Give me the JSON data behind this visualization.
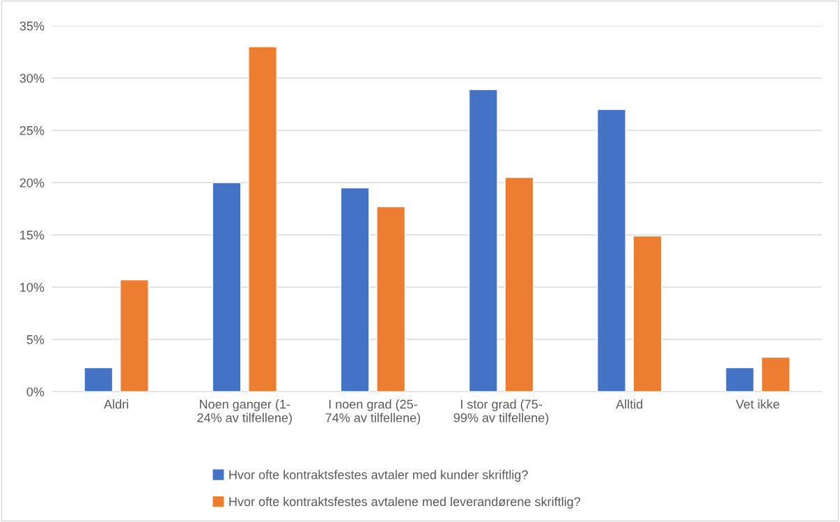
{
  "chart_data": {
    "type": "bar",
    "categories": [
      "Aldri",
      "Noen ganger (1-\n24% av tilfellene)",
      "I noen grad (25-\n74% av tilfellene)",
      "I stor grad (75-\n99% av tilfellene)",
      "Alltid",
      "Vet ikke"
    ],
    "series": [
      {
        "name": "Hvor ofte kontraktsfestes avtaler med kunder skriftlig?",
        "color": "#4472c4",
        "values": [
          2.3,
          20.0,
          19.5,
          28.9,
          27.0,
          2.3
        ]
      },
      {
        "name": "Hvor ofte kontraktsfestes avtalene med leverandørene skriftlig?",
        "color": "#ed7d31",
        "values": [
          10.7,
          33.0,
          17.7,
          20.5,
          14.9,
          3.3
        ]
      }
    ],
    "ylim": [
      0,
      35
    ],
    "yticks": [
      {
        "value": 0,
        "label": "0%"
      },
      {
        "value": 5,
        "label": "5%"
      },
      {
        "value": 10,
        "label": "10%"
      },
      {
        "value": 15,
        "label": "15%"
      },
      {
        "value": 20,
        "label": "20%"
      },
      {
        "value": 25,
        "label": "25%"
      },
      {
        "value": 30,
        "label": "30%"
      },
      {
        "value": 35,
        "label": "35%"
      }
    ],
    "grid": "y",
    "legend": "bottom"
  }
}
